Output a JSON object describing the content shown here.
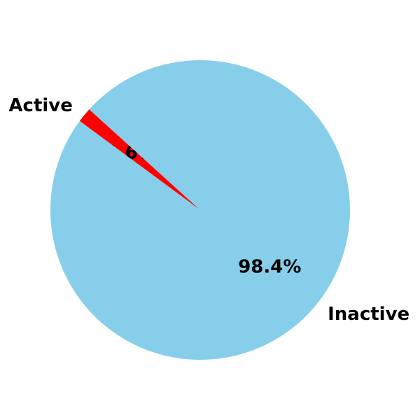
{
  "chart_data": {
    "type": "pie",
    "title": "",
    "slices": [
      {
        "label": "Active",
        "value": 1.6,
        "percent_label": "1.6%",
        "color": "#ff0000"
      },
      {
        "label": "Inactive",
        "value": 98.4,
        "percent_label": "98.4%",
        "color": "#87ceeb"
      }
    ],
    "start_angle_deg": 137.8,
    "direction": "counterclockwise"
  }
}
